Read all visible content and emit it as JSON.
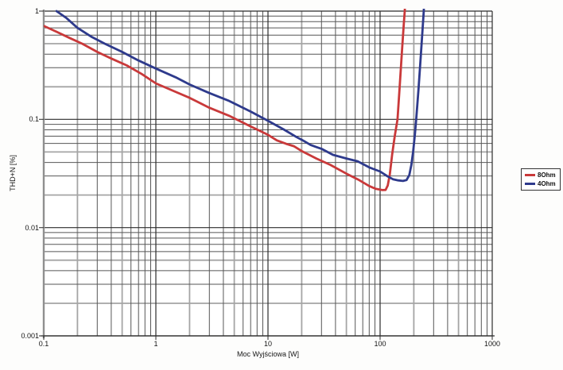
{
  "chart_data": {
    "type": "line",
    "title": "",
    "xlabel": "Moc Wyjściowa [W]",
    "ylabel": "THD+N [%]",
    "x_scale": "log",
    "y_scale": "log",
    "xlim": [
      0.1,
      1000
    ],
    "ylim": [
      0.001,
      1
    ],
    "x_ticks": [
      {
        "label": "0.1",
        "value": 0.1
      },
      {
        "label": "1",
        "value": 1
      },
      {
        "label": "10",
        "value": 10
      },
      {
        "label": "100",
        "value": 100
      },
      {
        "label": "1000",
        "value": 1000
      }
    ],
    "y_ticks": [
      {
        "label": "1",
        "value": 1
      },
      {
        "label": "0.1",
        "value": 0.1
      },
      {
        "label": "0.01",
        "value": 0.01
      },
      {
        "label": "0.001",
        "value": 0.001
      }
    ],
    "grid": {
      "minor_log": true,
      "emphasized_multiples": [
        2,
        5
      ]
    },
    "legend_position": "outside-right",
    "series": [
      {
        "name": "8Ohm",
        "color": "#c9393a",
        "points": [
          [
            0.1,
            0.73
          ],
          [
            0.13,
            0.645
          ],
          [
            0.17,
            0.565
          ],
          [
            0.22,
            0.5
          ],
          [
            0.3,
            0.42
          ],
          [
            0.4,
            0.365
          ],
          [
            0.55,
            0.315
          ],
          [
            0.75,
            0.262
          ],
          [
            1,
            0.215
          ],
          [
            1.4,
            0.185
          ],
          [
            2,
            0.158
          ],
          [
            3,
            0.128
          ],
          [
            4.5,
            0.108
          ],
          [
            7,
            0.086
          ],
          [
            10,
            0.072
          ],
          [
            12,
            0.064
          ],
          [
            14.5,
            0.0595
          ],
          [
            17,
            0.0565
          ],
          [
            20,
            0.051
          ],
          [
            27,
            0.0435
          ],
          [
            36,
            0.038
          ],
          [
            50,
            0.0315
          ],
          [
            65,
            0.0275
          ],
          [
            80,
            0.0242
          ],
          [
            92,
            0.0228
          ],
          [
            105,
            0.0222
          ],
          [
            112,
            0.0223
          ],
          [
            117,
            0.0245
          ],
          [
            122,
            0.031
          ],
          [
            128,
            0.047
          ],
          [
            135,
            0.07
          ],
          [
            143,
            0.1
          ],
          [
            150,
            0.21
          ],
          [
            157,
            0.44
          ],
          [
            163,
            0.78
          ],
          [
            166,
            1.0
          ],
          [
            168,
            1.4
          ]
        ]
      },
      {
        "name": "4Ohm",
        "color": "#2e3a8c",
        "points": [
          [
            0.13,
            1.0
          ],
          [
            0.16,
            0.86
          ],
          [
            0.2,
            0.7
          ],
          [
            0.27,
            0.575
          ],
          [
            0.35,
            0.5
          ],
          [
            0.5,
            0.42
          ],
          [
            0.7,
            0.35
          ],
          [
            1,
            0.295
          ],
          [
            1.5,
            0.245
          ],
          [
            2,
            0.21
          ],
          [
            3,
            0.175
          ],
          [
            4.5,
            0.148
          ],
          [
            7,
            0.118
          ],
          [
            10,
            0.097
          ],
          [
            14,
            0.08
          ],
          [
            18,
            0.0685
          ],
          [
            21,
            0.063
          ],
          [
            24,
            0.058
          ],
          [
            27,
            0.0555
          ],
          [
            30,
            0.0535
          ],
          [
            38,
            0.047
          ],
          [
            50,
            0.0435
          ],
          [
            63,
            0.041
          ],
          [
            80,
            0.036
          ],
          [
            100,
            0.033
          ],
          [
            115,
            0.03
          ],
          [
            130,
            0.028
          ],
          [
            145,
            0.0273
          ],
          [
            160,
            0.027
          ],
          [
            172,
            0.0275
          ],
          [
            182,
            0.0305
          ],
          [
            190,
            0.038
          ],
          [
            197,
            0.05
          ],
          [
            204,
            0.072
          ],
          [
            210,
            0.1
          ],
          [
            220,
            0.19
          ],
          [
            230,
            0.37
          ],
          [
            239,
            0.68
          ],
          [
            245,
            1.0
          ],
          [
            248,
            1.35
          ]
        ]
      }
    ]
  }
}
